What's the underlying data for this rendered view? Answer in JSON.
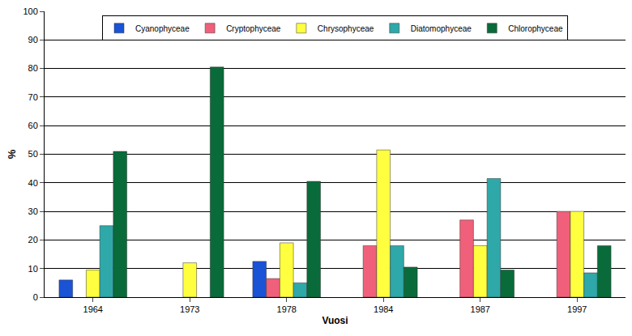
{
  "chart_data": {
    "type": "bar",
    "x_label": "Vuosi",
    "y_label": "%",
    "categories": [
      "1964",
      "1973",
      "1978",
      "1984",
      "1987",
      "1997"
    ],
    "series": [
      {
        "name": "Cyanophyceae",
        "color": "#1a53d6",
        "values": [
          6,
          null,
          12.5,
          null,
          null,
          null
        ]
      },
      {
        "name": "Cryptophyceae",
        "color": "#f0607a",
        "values": [
          null,
          null,
          6.5,
          18,
          27,
          30
        ]
      },
      {
        "name": "Chrysophyceae",
        "color": "#ffff40",
        "values": [
          9.5,
          12,
          19,
          51.5,
          18,
          30
        ]
      },
      {
        "name": "Diatomophyceae",
        "color": "#2ea8a8",
        "values": [
          25,
          null,
          5,
          18,
          41.5,
          8.5
        ]
      },
      {
        "name": "Chlorophyceae",
        "color": "#0a6b3a",
        "values": [
          51,
          80.5,
          40.5,
          10.5,
          9.5,
          18
        ]
      }
    ],
    "ylim": [
      0,
      100
    ],
    "yticks": [
      0,
      10,
      20,
      30,
      40,
      50,
      60,
      70,
      80,
      90,
      100
    ],
    "grid": true,
    "legend": "top"
  }
}
